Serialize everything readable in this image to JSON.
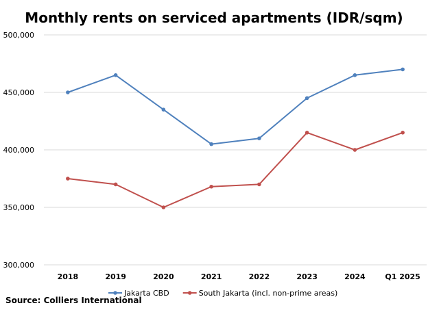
{
  "chart_data": {
    "type": "line",
    "title": "Monthly rents on serviced apartments (IDR/sqm)",
    "xlabel": "",
    "ylabel": "",
    "categories": [
      "2018",
      "2019",
      "2020",
      "2021",
      "2022",
      "2023",
      "2024",
      "Q1 2025"
    ],
    "ylim": [
      300000,
      500000
    ],
    "yticks": [
      "300,000",
      "350,000",
      "400,000",
      "450,000",
      "500,000"
    ],
    "ytick_values": [
      300000,
      350000,
      400000,
      450000,
      500000
    ],
    "grid": true,
    "legend_position": "bottom",
    "series": [
      {
        "name": "Jakarta CBD",
        "color": "#4f81bd",
        "values": [
          450000,
          465000,
          435000,
          405000,
          410000,
          445000,
          465000,
          470000
        ]
      },
      {
        "name": "South Jakarta (incl. non-prime areas)",
        "color": "#c0504d",
        "values": [
          375000,
          370000,
          350000,
          368000,
          370000,
          415000,
          400000,
          415000
        ]
      }
    ],
    "source": "Source: Colliers International"
  }
}
